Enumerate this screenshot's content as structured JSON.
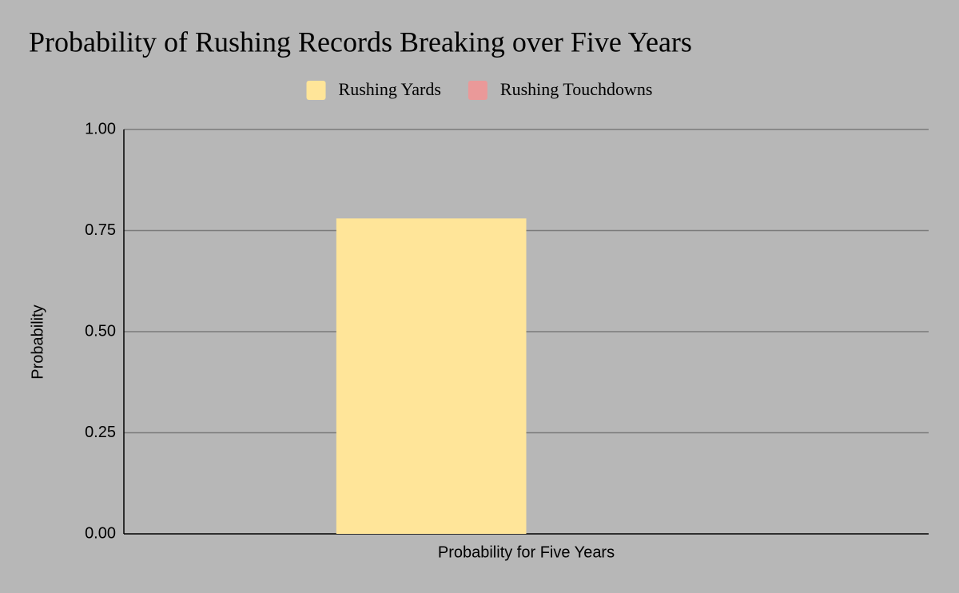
{
  "chart_data": {
    "type": "bar",
    "title": "Probability of Rushing Records Breaking over Five Years",
    "y_label": "Probability",
    "categories": [
      "Probability for Five Years"
    ],
    "series": [
      {
        "name": "Rushing Yards",
        "color": "#ffe599",
        "values": [
          0.78
        ]
      },
      {
        "name": "Rushing Touchdowns",
        "color": "#ea9999",
        "values": [
          0
        ]
      }
    ],
    "ylim": [
      0,
      1
    ],
    "yticks": [
      {
        "value": 0,
        "label": "0.00"
      },
      {
        "value": 0.25,
        "label": "0.25"
      },
      {
        "value": 0.5,
        "label": "0.50"
      },
      {
        "value": 0.75,
        "label": "0.75"
      },
      {
        "value": 1,
        "label": "1.00"
      }
    ],
    "grid": true,
    "legend": "top"
  }
}
